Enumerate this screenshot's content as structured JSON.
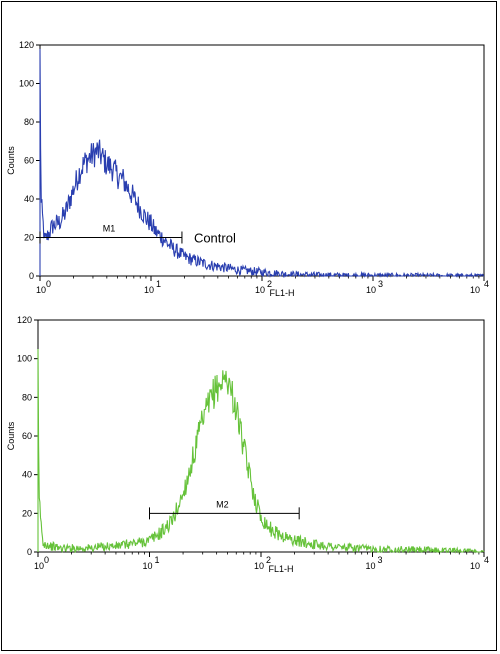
{
  "chart_data": [
    {
      "type": "line",
      "panel": "top",
      "x_scale": "log",
      "xlim": [
        1,
        10000
      ],
      "ylim": [
        0,
        120
      ],
      "xlabel": "FL1-H",
      "ylabel": "Counts",
      "x_ticks": [
        "10",
        "10",
        "10",
        "10",
        "10"
      ],
      "x_tick_exponents": [
        "0",
        "1",
        "2",
        "3",
        "4"
      ],
      "y_ticks": [
        "0",
        "20",
        "40",
        "60",
        "80",
        "100",
        "120"
      ],
      "color": "#2a3fb0",
      "series": [
        {
          "x": [
            1.0,
            1.02,
            1.1,
            1.2,
            1.3,
            1.5,
            1.7,
            2.0,
            2.3,
            2.6,
            3.0,
            3.3,
            3.6,
            4.0,
            4.5,
            5.0,
            5.6,
            6.3,
            7.1,
            8.0,
            9.0,
            10,
            11,
            12.6,
            14,
            16,
            18,
            20,
            25,
            32,
            40,
            50,
            63,
            80,
            100,
            130,
            160,
            200,
            300,
            500,
            1000,
            3000,
            10000
          ],
          "y": [
            118,
            40,
            18,
            22,
            26,
            28,
            33,
            45,
            55,
            60,
            63,
            65,
            62,
            58,
            56,
            52,
            50,
            45,
            40,
            35,
            30,
            27,
            23,
            20,
            17,
            14,
            12,
            10,
            8,
            6,
            5,
            4,
            3,
            2.5,
            2,
            1.5,
            1,
            0.8,
            0.5,
            0.3,
            0.2,
            0.1,
            0
          ]
        }
      ],
      "gate": {
        "label": "M1",
        "x_start": 1.0,
        "x_end": 19,
        "y": 20
      },
      "annotation": "Control"
    },
    {
      "type": "line",
      "panel": "bottom",
      "x_scale": "log",
      "xlim": [
        1,
        10000
      ],
      "ylim": [
        0,
        120
      ],
      "xlabel": "FL1-H",
      "ylabel": "Counts",
      "x_ticks": [
        "10",
        "10",
        "10",
        "10",
        "10"
      ],
      "x_tick_exponents": [
        "0",
        "1",
        "2",
        "3",
        "4"
      ],
      "y_ticks": [
        "0",
        "20",
        "40",
        "60",
        "80",
        "100",
        "120"
      ],
      "color": "#66c23a",
      "series": [
        {
          "x": [
            1.0,
            1.02,
            1.1,
            1.3,
            1.6,
            2.0,
            3.0,
            4.0,
            5.0,
            6.3,
            8.0,
            10,
            12.6,
            16,
            20,
            25,
            28,
            32,
            36,
            40,
            45,
            50,
            56,
            63,
            71,
            80,
            90,
            100,
            126,
            160,
            200,
            300,
            500,
            1000,
            3000,
            6000,
            10000
          ],
          "y": [
            105,
            30,
            5,
            3,
            2,
            2,
            2,
            3,
            3,
            4,
            5,
            6,
            10,
            16,
            30,
            50,
            62,
            72,
            80,
            85,
            88,
            90,
            80,
            68,
            52,
            38,
            26,
            18,
            11,
            8,
            6,
            4,
            2.5,
            1.5,
            1,
            0.5,
            0
          ]
        }
      ],
      "gate": {
        "label": "M2",
        "x_start": 10,
        "x_end": 220,
        "y": 20
      }
    }
  ]
}
